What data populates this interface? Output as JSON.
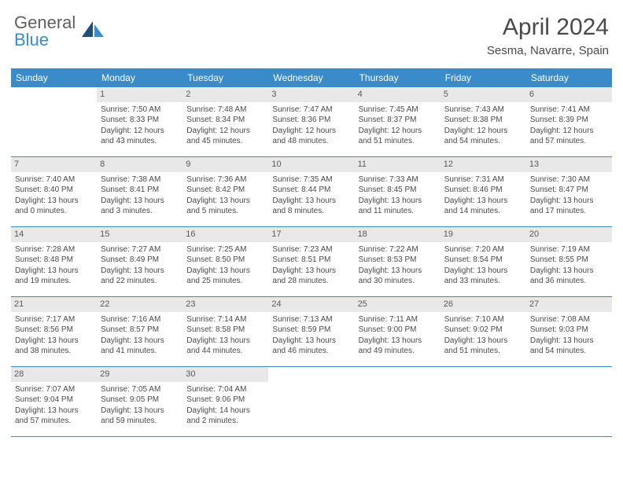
{
  "brand": {
    "general": "General",
    "blue": "Blue"
  },
  "title": "April 2024",
  "location": "Sesma, Navarre, Spain",
  "colors": {
    "header_bg": "#3a8bc9",
    "header_text": "#ffffff",
    "daynum_bg": "#e8e8e8",
    "rule": "#3a8bc9",
    "body_text": "#4a4a4a",
    "logo_gray": "#5f5f5f",
    "logo_blue": "#3a8bc9",
    "page_bg": "#ffffff"
  },
  "dow": [
    "Sunday",
    "Monday",
    "Tuesday",
    "Wednesday",
    "Thursday",
    "Friday",
    "Saturday"
  ],
  "weeks": [
    [
      {
        "num": "",
        "sunrise": "",
        "sunset": "",
        "daylight": ""
      },
      {
        "num": "1",
        "sunrise": "Sunrise: 7:50 AM",
        "sunset": "Sunset: 8:33 PM",
        "daylight": "Daylight: 12 hours and 43 minutes."
      },
      {
        "num": "2",
        "sunrise": "Sunrise: 7:48 AM",
        "sunset": "Sunset: 8:34 PM",
        "daylight": "Daylight: 12 hours and 45 minutes."
      },
      {
        "num": "3",
        "sunrise": "Sunrise: 7:47 AM",
        "sunset": "Sunset: 8:36 PM",
        "daylight": "Daylight: 12 hours and 48 minutes."
      },
      {
        "num": "4",
        "sunrise": "Sunrise: 7:45 AM",
        "sunset": "Sunset: 8:37 PM",
        "daylight": "Daylight: 12 hours and 51 minutes."
      },
      {
        "num": "5",
        "sunrise": "Sunrise: 7:43 AM",
        "sunset": "Sunset: 8:38 PM",
        "daylight": "Daylight: 12 hours and 54 minutes."
      },
      {
        "num": "6",
        "sunrise": "Sunrise: 7:41 AM",
        "sunset": "Sunset: 8:39 PM",
        "daylight": "Daylight: 12 hours and 57 minutes."
      }
    ],
    [
      {
        "num": "7",
        "sunrise": "Sunrise: 7:40 AM",
        "sunset": "Sunset: 8:40 PM",
        "daylight": "Daylight: 13 hours and 0 minutes."
      },
      {
        "num": "8",
        "sunrise": "Sunrise: 7:38 AM",
        "sunset": "Sunset: 8:41 PM",
        "daylight": "Daylight: 13 hours and 3 minutes."
      },
      {
        "num": "9",
        "sunrise": "Sunrise: 7:36 AM",
        "sunset": "Sunset: 8:42 PM",
        "daylight": "Daylight: 13 hours and 5 minutes."
      },
      {
        "num": "10",
        "sunrise": "Sunrise: 7:35 AM",
        "sunset": "Sunset: 8:44 PM",
        "daylight": "Daylight: 13 hours and 8 minutes."
      },
      {
        "num": "11",
        "sunrise": "Sunrise: 7:33 AM",
        "sunset": "Sunset: 8:45 PM",
        "daylight": "Daylight: 13 hours and 11 minutes."
      },
      {
        "num": "12",
        "sunrise": "Sunrise: 7:31 AM",
        "sunset": "Sunset: 8:46 PM",
        "daylight": "Daylight: 13 hours and 14 minutes."
      },
      {
        "num": "13",
        "sunrise": "Sunrise: 7:30 AM",
        "sunset": "Sunset: 8:47 PM",
        "daylight": "Daylight: 13 hours and 17 minutes."
      }
    ],
    [
      {
        "num": "14",
        "sunrise": "Sunrise: 7:28 AM",
        "sunset": "Sunset: 8:48 PM",
        "daylight": "Daylight: 13 hours and 19 minutes."
      },
      {
        "num": "15",
        "sunrise": "Sunrise: 7:27 AM",
        "sunset": "Sunset: 8:49 PM",
        "daylight": "Daylight: 13 hours and 22 minutes."
      },
      {
        "num": "16",
        "sunrise": "Sunrise: 7:25 AM",
        "sunset": "Sunset: 8:50 PM",
        "daylight": "Daylight: 13 hours and 25 minutes."
      },
      {
        "num": "17",
        "sunrise": "Sunrise: 7:23 AM",
        "sunset": "Sunset: 8:51 PM",
        "daylight": "Daylight: 13 hours and 28 minutes."
      },
      {
        "num": "18",
        "sunrise": "Sunrise: 7:22 AM",
        "sunset": "Sunset: 8:53 PM",
        "daylight": "Daylight: 13 hours and 30 minutes."
      },
      {
        "num": "19",
        "sunrise": "Sunrise: 7:20 AM",
        "sunset": "Sunset: 8:54 PM",
        "daylight": "Daylight: 13 hours and 33 minutes."
      },
      {
        "num": "20",
        "sunrise": "Sunrise: 7:19 AM",
        "sunset": "Sunset: 8:55 PM",
        "daylight": "Daylight: 13 hours and 36 minutes."
      }
    ],
    [
      {
        "num": "21",
        "sunrise": "Sunrise: 7:17 AM",
        "sunset": "Sunset: 8:56 PM",
        "daylight": "Daylight: 13 hours and 38 minutes."
      },
      {
        "num": "22",
        "sunrise": "Sunrise: 7:16 AM",
        "sunset": "Sunset: 8:57 PM",
        "daylight": "Daylight: 13 hours and 41 minutes."
      },
      {
        "num": "23",
        "sunrise": "Sunrise: 7:14 AM",
        "sunset": "Sunset: 8:58 PM",
        "daylight": "Daylight: 13 hours and 44 minutes."
      },
      {
        "num": "24",
        "sunrise": "Sunrise: 7:13 AM",
        "sunset": "Sunset: 8:59 PM",
        "daylight": "Daylight: 13 hours and 46 minutes."
      },
      {
        "num": "25",
        "sunrise": "Sunrise: 7:11 AM",
        "sunset": "Sunset: 9:00 PM",
        "daylight": "Daylight: 13 hours and 49 minutes."
      },
      {
        "num": "26",
        "sunrise": "Sunrise: 7:10 AM",
        "sunset": "Sunset: 9:02 PM",
        "daylight": "Daylight: 13 hours and 51 minutes."
      },
      {
        "num": "27",
        "sunrise": "Sunrise: 7:08 AM",
        "sunset": "Sunset: 9:03 PM",
        "daylight": "Daylight: 13 hours and 54 minutes."
      }
    ],
    [
      {
        "num": "28",
        "sunrise": "Sunrise: 7:07 AM",
        "sunset": "Sunset: 9:04 PM",
        "daylight": "Daylight: 13 hours and 57 minutes."
      },
      {
        "num": "29",
        "sunrise": "Sunrise: 7:05 AM",
        "sunset": "Sunset: 9:05 PM",
        "daylight": "Daylight: 13 hours and 59 minutes."
      },
      {
        "num": "30",
        "sunrise": "Sunrise: 7:04 AM",
        "sunset": "Sunset: 9:06 PM",
        "daylight": "Daylight: 14 hours and 2 minutes."
      },
      {
        "num": "",
        "sunrise": "",
        "sunset": "",
        "daylight": ""
      },
      {
        "num": "",
        "sunrise": "",
        "sunset": "",
        "daylight": ""
      },
      {
        "num": "",
        "sunrise": "",
        "sunset": "",
        "daylight": ""
      },
      {
        "num": "",
        "sunrise": "",
        "sunset": "",
        "daylight": ""
      }
    ]
  ]
}
